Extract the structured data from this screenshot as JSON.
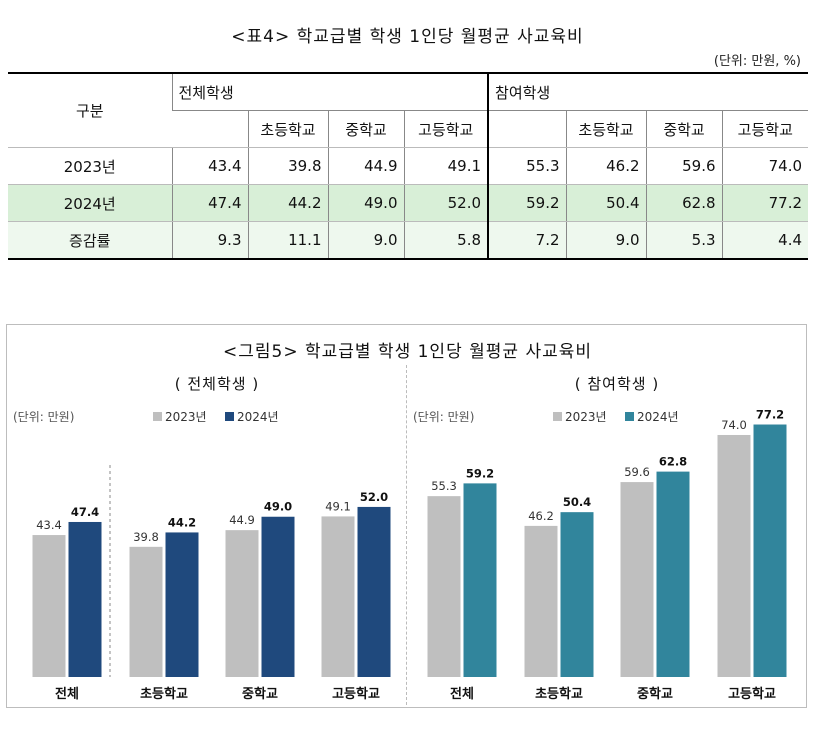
{
  "table": {
    "title": "<표4> 학교급별 학생 1인당 월평균 사교육비",
    "unit": "(단위: 만원, %)",
    "corner": "구분",
    "group_all": "전체학생",
    "group_part": "참여학생",
    "sub_headers": [
      "초등학교",
      "중학교",
      "고등학교"
    ],
    "rows": [
      {
        "label": "2023년",
        "values": [
          "43.4",
          "39.8",
          "44.9",
          "49.1",
          "55.3",
          "46.2",
          "59.6",
          "74.0"
        ]
      },
      {
        "label": "2024년",
        "values": [
          "47.4",
          "44.2",
          "49.0",
          "52.0",
          "59.2",
          "50.4",
          "62.8",
          "77.2"
        ]
      },
      {
        "label": "증감률",
        "values": [
          "9.3",
          "11.1",
          "9.0",
          "5.8",
          "7.2",
          "9.0",
          "5.3",
          "4.4"
        ]
      }
    ]
  },
  "figure": {
    "title": "<그림5> 학교급별 학생 1인당 월평균 사교육비"
  },
  "chart_data": [
    {
      "type": "bar",
      "title": "( 전체학생 )",
      "unit_label": "(단위: 만원)",
      "categories": [
        "전체",
        "초등학교",
        "중학교",
        "고등학교"
      ],
      "series": [
        {
          "name": "2023년",
          "values": [
            43.4,
            39.8,
            44.9,
            49.1
          ],
          "color": "#bfbfbf"
        },
        {
          "name": "2024년",
          "values": [
            47.4,
            44.2,
            49.0,
            52.0
          ],
          "color": "#1f497d"
        }
      ],
      "ylim": [
        0,
        85
      ]
    },
    {
      "type": "bar",
      "title": "( 참여학생 )",
      "unit_label": "(단위: 만원)",
      "categories": [
        "전체",
        "초등학교",
        "중학교",
        "고등학교"
      ],
      "series": [
        {
          "name": "2023년",
          "values": [
            55.3,
            46.2,
            59.6,
            74.0
          ],
          "color": "#bfbfbf"
        },
        {
          "name": "2024년",
          "values": [
            59.2,
            50.4,
            62.8,
            77.2
          ],
          "color": "#31859c"
        }
      ],
      "ylim": [
        0,
        85
      ]
    }
  ]
}
